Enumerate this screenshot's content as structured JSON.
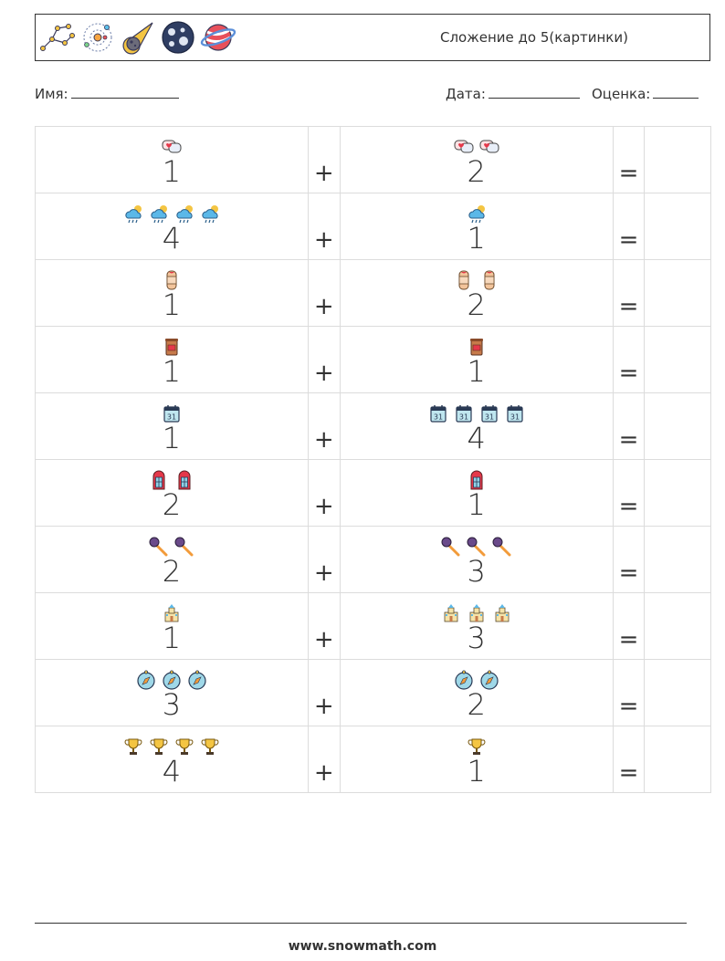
{
  "header": {
    "title": "Сложение до 5(картинки)",
    "icons": [
      "constellation-icon",
      "solar-system-icon",
      "comet-icon",
      "moon-icon",
      "planet-icon"
    ]
  },
  "meta": {
    "name_label": "Имя:",
    "date_label": "Дата:",
    "grade_label": "Оценка:"
  },
  "rows": [
    {
      "a": "1",
      "b": "2",
      "icon": "chat-heart-icon"
    },
    {
      "a": "4",
      "b": "1",
      "icon": "rain-cloud-icon"
    },
    {
      "a": "1",
      "b": "2",
      "icon": "bandage-icon"
    },
    {
      "a": "1",
      "b": "1",
      "icon": "coffee-cup-icon"
    },
    {
      "a": "1",
      "b": "4",
      "icon": "calendar-icon"
    },
    {
      "a": "2",
      "b": "1",
      "icon": "window-icon"
    },
    {
      "a": "2",
      "b": "3",
      "icon": "microphone-icon"
    },
    {
      "a": "1",
      "b": "3",
      "icon": "castle-icon"
    },
    {
      "a": "3",
      "b": "2",
      "icon": "compass-icon"
    },
    {
      "a": "4",
      "b": "1",
      "icon": "trophy-icon"
    }
  ],
  "plus": "+",
  "equals": "=",
  "footer": "www.snowmath.com"
}
